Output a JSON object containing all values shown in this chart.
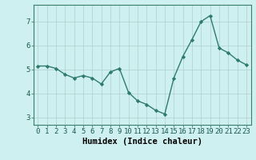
{
  "x": [
    0,
    1,
    2,
    3,
    4,
    5,
    6,
    7,
    8,
    9,
    10,
    11,
    12,
    13,
    14,
    15,
    16,
    17,
    18,
    19,
    20,
    21,
    22,
    23
  ],
  "y": [
    5.15,
    5.15,
    5.05,
    4.8,
    4.65,
    4.75,
    4.65,
    4.4,
    4.9,
    5.05,
    4.05,
    3.7,
    3.55,
    3.3,
    3.15,
    4.65,
    5.55,
    6.25,
    7.0,
    7.25,
    5.9,
    5.7,
    5.4,
    5.2
  ],
  "line_color": "#2e7b6e",
  "marker": "D",
  "marker_size": 2.2,
  "linewidth": 1.0,
  "bg_color": "#cff0f0",
  "grid_color": "#b0cece",
  "xlabel": "Humidex (Indice chaleur)",
  "xlim": [
    -0.5,
    23.5
  ],
  "ylim": [
    2.7,
    7.7
  ],
  "yticks": [
    3,
    4,
    5,
    6,
    7
  ],
  "xtick_labels": [
    "0",
    "1",
    "2",
    "3",
    "4",
    "5",
    "6",
    "7",
    "8",
    "9",
    "10",
    "11",
    "12",
    "13",
    "14",
    "15",
    "16",
    "17",
    "18",
    "19",
    "20",
    "21",
    "22",
    "23"
  ],
  "xlabel_fontsize": 7.5,
  "tick_fontsize": 6.5,
  "spine_color": "#3a8070"
}
